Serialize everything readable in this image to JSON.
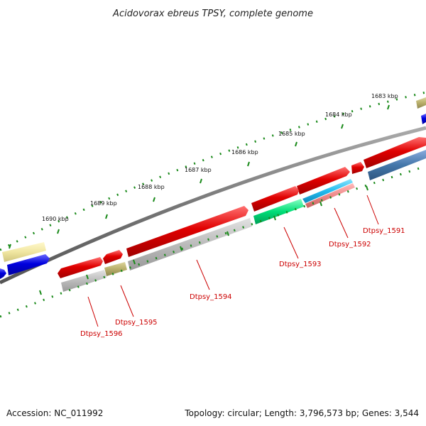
{
  "title": "Acidovorax ebreus TPSY, complete genome",
  "footer": {
    "accession": "Accession: NC_011992",
    "summary": "Topology: circular; Length: 3,796,573 bp; Genes: 3,544"
  },
  "scale_labels": [
    "1683 kbp",
    "1684 kbp",
    "1685 kbp",
    "1686 kbp",
    "1687 kbp",
    "1688 kbp",
    "1689 kbp",
    "1690 kbp"
  ],
  "genes": [
    {
      "name": "Dtpsy_1591",
      "color": "#e00000"
    },
    {
      "name": "Dtpsy_1592",
      "color": "#e00000"
    },
    {
      "name": "Dtpsy_1593",
      "color": "#00dd77"
    },
    {
      "name": "Dtpsy_1594",
      "color": "#e00000"
    },
    {
      "name": "Dtpsy_1595",
      "color": "#e00000"
    },
    {
      "name": "Dtpsy_1596",
      "color": "#e00000"
    }
  ],
  "colors": {
    "backbone": "#777777",
    "tick": "#1a8a1a",
    "forward_cds": "#e00000",
    "forward_rna": "#0000dd",
    "cog_grey": "#bbbbbb",
    "cog_tan": "#b8ae6a",
    "cog_yellow": "#f0e6a0",
    "cog_cyan": "#22bbee",
    "cog_pink": "#ee8888",
    "cog_steel": "#4477aa",
    "cog_green": "#00dd77",
    "label": "#cc0000"
  }
}
